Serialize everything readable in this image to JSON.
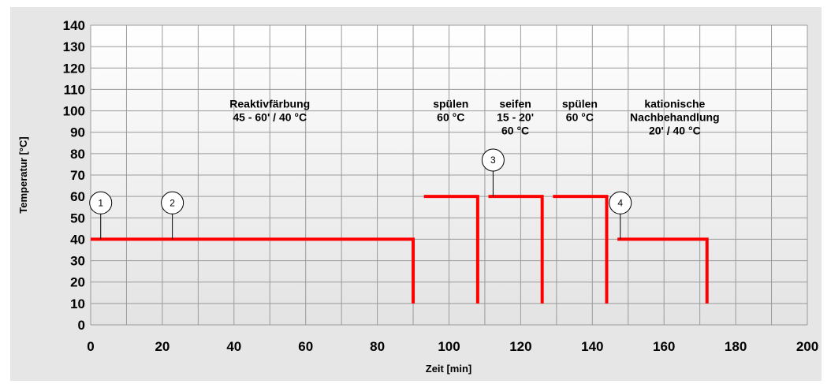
{
  "colors": {
    "outer_background": "#e6e6e6",
    "plot_gradient_top": "#ffffff",
    "plot_gradient_bottom": "#e3e3e3",
    "grid": "#9a9a9a",
    "series": "#ff0000",
    "text": "#000000"
  },
  "chart_data": {
    "type": "line",
    "title": "",
    "xlabel": "Zeit [min]",
    "ylabel": "Temperatur [°C]",
    "xlim": [
      0,
      200
    ],
    "ylim": [
      0,
      140
    ],
    "x_ticks": [
      0,
      20,
      40,
      60,
      80,
      100,
      120,
      140,
      160,
      180,
      200
    ],
    "y_ticks": [
      0,
      10,
      20,
      30,
      40,
      50,
      60,
      70,
      80,
      90,
      100,
      110,
      120,
      130,
      140
    ],
    "x_grid_step": 10,
    "y_grid_step": 10,
    "grid": true,
    "legend": "none",
    "series": [
      {
        "name": "",
        "x": [
          0,
          90,
          90
        ],
        "y": [
          40,
          40,
          10
        ]
      },
      {
        "name": "",
        "x": [
          93,
          108,
          108
        ],
        "y": [
          60,
          60,
          10
        ]
      },
      {
        "name": "",
        "x": [
          111,
          126,
          126
        ],
        "y": [
          60,
          60,
          10
        ]
      },
      {
        "name": "",
        "x": [
          129,
          144,
          144
        ],
        "y": [
          60,
          60,
          10
        ]
      },
      {
        "name": "",
        "x": [
          147,
          172,
          172
        ],
        "y": [
          40,
          40,
          10
        ]
      }
    ],
    "annotations": [
      {
        "lines": [
          "Reaktivfärbung",
          "45 - 60' / 40 °C"
        ],
        "x": 50,
        "y": 101.5
      },
      {
        "lines": [
          "spülen",
          "60 °C"
        ],
        "x": 100.5,
        "y": 101.5
      },
      {
        "lines": [
          "seifen",
          "15 - 20'",
          "60 °C"
        ],
        "x": 118.5,
        "y": 101.5
      },
      {
        "lines": [
          "spülen",
          "60 °C"
        ],
        "x": 136.5,
        "y": 101.5
      },
      {
        "lines": [
          "kationische",
          "Nachbehandlung",
          "20' / 40 °C"
        ],
        "x": 163,
        "y": 101.5
      }
    ],
    "markers": [
      {
        "label": "1",
        "x": 2.8,
        "y": 40,
        "label_y": 57
      },
      {
        "label": "2",
        "x": 22.8,
        "y": 40,
        "label_y": 57
      },
      {
        "label": "3",
        "x": 112.3,
        "y": 60,
        "label_y": 77
      },
      {
        "label": "4",
        "x": 147.8,
        "y": 40,
        "label_y": 57
      }
    ]
  }
}
